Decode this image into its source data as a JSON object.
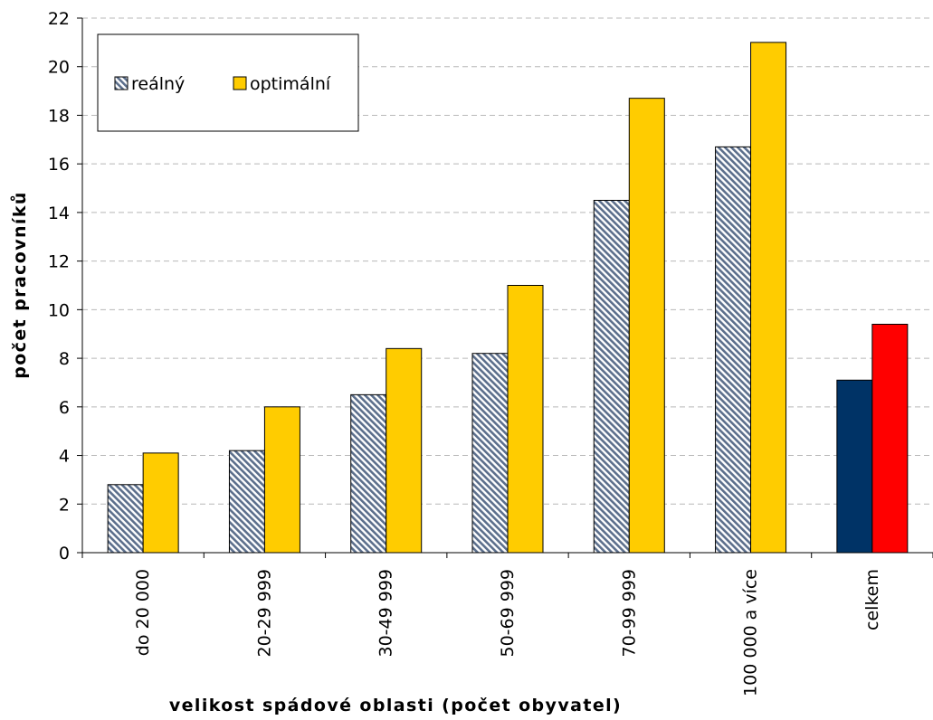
{
  "chart_data": {
    "type": "bar",
    "categories": [
      "do 20 000",
      "20-29 999",
      "30-49 999",
      "50-69 999",
      "70-99 999",
      "100 000 a více",
      "celkem"
    ],
    "series": [
      {
        "name": "reálný",
        "values": [
          2.8,
          4.2,
          6.5,
          8.2,
          14.5,
          16.7,
          7.1
        ],
        "color": "#aab6c6",
        "pattern": "diagonal-hatch"
      },
      {
        "name": "optimální",
        "values": [
          4.1,
          6.0,
          8.4,
          11.0,
          18.7,
          21.0,
          9.4
        ],
        "color": "#ffcc00"
      }
    ],
    "highlight": {
      "category": "celkem",
      "colors": [
        "#003366",
        "#ff0000"
      ]
    },
    "ylim": [
      0,
      22
    ],
    "yticks": [
      0,
      2,
      4,
      6,
      8,
      10,
      12,
      14,
      16,
      18,
      20,
      22
    ],
    "xlabel": "velikost spádové oblasti (počet obyvatel)",
    "ylabel": "počet pracovníků",
    "grid": true,
    "legend_position": "top-left"
  }
}
